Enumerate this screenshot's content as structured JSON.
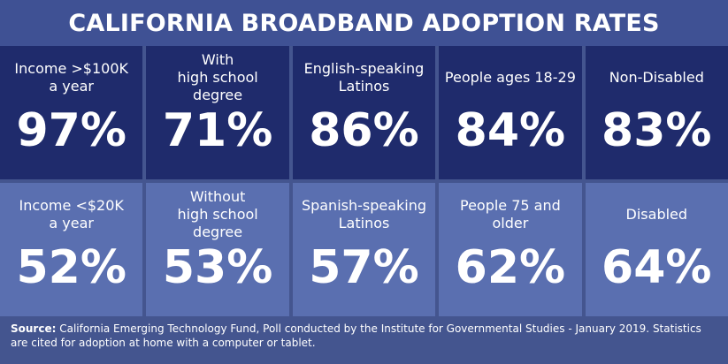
{
  "title": "CALIFORNIA BROADBAND ADOPTION RATES",
  "stats": [
    [
      {
        "label": "Income >$100K\na year",
        "value": "97%"
      },
      {
        "label": "With\nhigh school degree",
        "value": "71%"
      },
      {
        "label": "English-speaking\nLatinos",
        "value": "86%"
      },
      {
        "label": "People ages 18-29",
        "value": "84%"
      },
      {
        "label": "Non-Disabled",
        "value": "83%"
      }
    ],
    [
      {
        "label": "Income <$20K\na year",
        "value": "52%"
      },
      {
        "label": "Without\nhigh school degree",
        "value": "53%"
      },
      {
        "label": "Spanish-speaking\nLatinos",
        "value": "57%"
      },
      {
        "label": "People 75 and older",
        "value": "62%"
      },
      {
        "label": "Disabled",
        "value": "64%"
      }
    ]
  ],
  "source": {
    "label": "Source:",
    "text": "California Emerging Technology Fund, Poll conducted by the Institute for Governmental Studies - January 2019. Statistics are cited for adoption at home with a computer or tablet."
  },
  "colors": {
    "background": "#44558f",
    "title_bar": "#3f5194",
    "top_row": "#1f2b6c",
    "bottom_row": "#5a6fb0",
    "text": "#ffffff"
  }
}
